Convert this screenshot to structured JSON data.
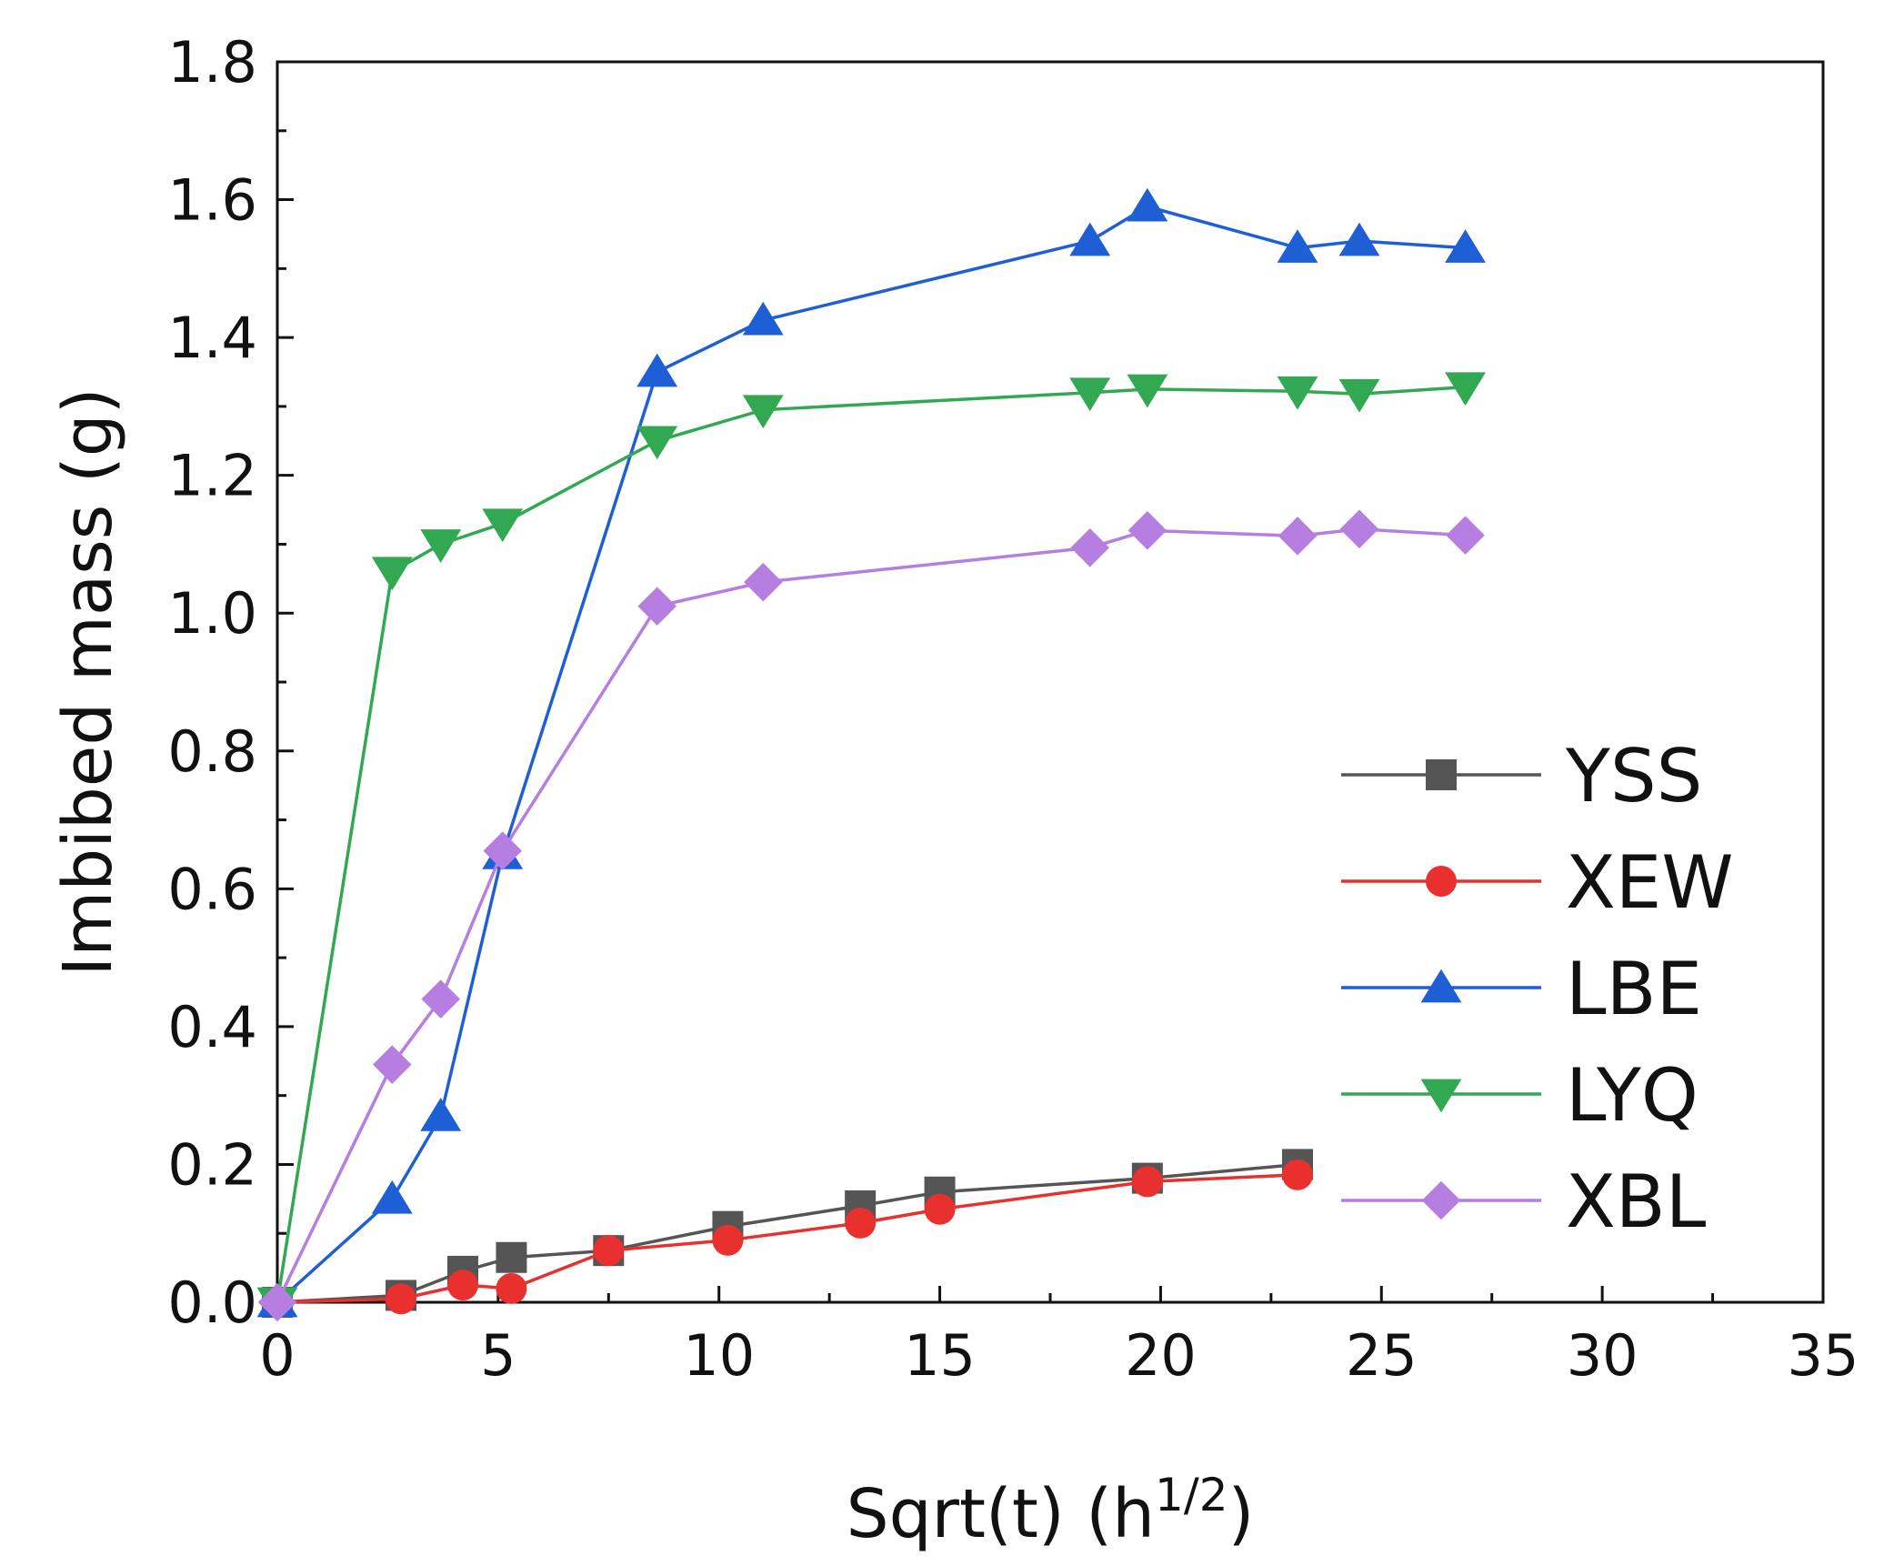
{
  "chart_data": {
    "type": "line",
    "xlabel": "Sqrt(t) (h",
    "xlabel_sup": "1/2",
    "xlabel_suffix": ")",
    "ylabel": "Imbibed mass (g)",
    "xlim": [
      0,
      35
    ],
    "ylim": [
      0,
      1.8
    ],
    "x_ticks": [
      0,
      5,
      10,
      15,
      20,
      25,
      30,
      35
    ],
    "x_tick_labels": [
      "0",
      "5",
      "10",
      "15",
      "20",
      "25",
      "30",
      "35"
    ],
    "y_ticks": [
      0,
      0.2,
      0.4,
      0.6,
      0.8,
      1.0,
      1.2,
      1.4,
      1.6,
      1.8
    ],
    "y_tick_labels": [
      "0.0",
      "0.2",
      "0.4",
      "0.6",
      "0.8",
      "1.0",
      "1.2",
      "1.4",
      "1.6",
      "1.8"
    ],
    "grid": false,
    "legend_position": "bottom-right",
    "series": [
      {
        "name": "YSS",
        "color": "#555555",
        "marker": "square",
        "x": [
          0,
          2.8,
          4.2,
          5.3,
          7.5,
          10.2,
          13.2,
          15.0,
          19.7,
          23.1
        ],
        "y": [
          0,
          0.01,
          0.045,
          0.065,
          0.075,
          0.11,
          0.14,
          0.16,
          0.18,
          0.2
        ]
      },
      {
        "name": "XEW",
        "color": "#e8302f",
        "marker": "circle",
        "x": [
          0,
          2.8,
          4.2,
          5.3,
          7.5,
          10.2,
          13.2,
          15.0,
          19.7,
          23.1
        ],
        "y": [
          0,
          0.005,
          0.025,
          0.02,
          0.075,
          0.09,
          0.115,
          0.135,
          0.175,
          0.185
        ]
      },
      {
        "name": "LBE",
        "color": "#1f5fd6",
        "marker": "triangle-up",
        "x": [
          0,
          2.6,
          3.7,
          5.1,
          8.6,
          11.0,
          18.4,
          19.7,
          23.1,
          24.5,
          26.9
        ],
        "y": [
          0,
          0.15,
          0.27,
          0.65,
          1.35,
          1.425,
          1.54,
          1.59,
          1.53,
          1.54,
          1.53
        ]
      },
      {
        "name": "LYQ",
        "color": "#33a852",
        "marker": "triangle-down",
        "x": [
          0,
          2.6,
          3.7,
          5.1,
          8.6,
          11.0,
          18.4,
          19.7,
          23.1,
          24.5,
          26.9
        ],
        "y": [
          0,
          1.06,
          1.1,
          1.13,
          1.25,
          1.295,
          1.32,
          1.325,
          1.322,
          1.318,
          1.328
        ]
      },
      {
        "name": "XBL",
        "color": "#b57ee0",
        "marker": "diamond",
        "x": [
          0,
          2.6,
          3.7,
          5.1,
          8.6,
          11.0,
          18.4,
          19.7,
          23.1,
          24.5,
          26.9
        ],
        "y": [
          0,
          0.345,
          0.44,
          0.655,
          1.01,
          1.045,
          1.095,
          1.12,
          1.112,
          1.122,
          1.113
        ]
      }
    ]
  }
}
